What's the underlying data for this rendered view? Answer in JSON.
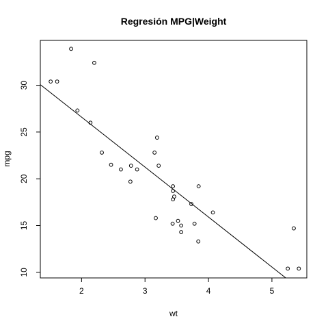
{
  "chart_data": {
    "type": "scatter",
    "title": "Regresión MPG|Weight",
    "xlabel": "wt",
    "ylabel": "mpg",
    "xlim": [
      1.35,
      5.55
    ],
    "ylim": [
      9.4,
      34.8
    ],
    "x_ticks": [
      2,
      3,
      4,
      5
    ],
    "y_ticks": [
      10,
      15,
      20,
      25,
      30
    ],
    "grid": false,
    "legend": "none",
    "point_style": "open-circle",
    "colors": {
      "points": "#000000",
      "line": "#000000",
      "box": "#000000",
      "background": "#ffffff"
    },
    "series": [
      {
        "x": [
          2.62,
          2.875,
          2.32,
          3.215,
          3.44,
          3.46,
          3.57,
          3.19,
          3.15,
          3.44,
          3.44,
          4.07,
          3.73,
          3.78,
          5.25,
          5.424,
          5.345,
          2.2,
          1.615,
          1.835,
          2.465,
          3.52,
          3.435,
          3.84,
          3.845,
          1.935,
          2.14,
          1.513,
          3.17,
          2.77,
          3.57,
          2.78
        ],
        "y": [
          21.0,
          21.0,
          22.8,
          21.4,
          18.7,
          18.1,
          14.3,
          24.4,
          22.8,
          19.2,
          17.8,
          16.4,
          17.3,
          15.2,
          10.4,
          10.4,
          14.7,
          32.4,
          30.4,
          33.9,
          21.5,
          15.5,
          15.2,
          13.3,
          19.2,
          27.3,
          26.0,
          30.4,
          15.8,
          19.7,
          15.0,
          21.4
        ]
      }
    ],
    "regression_line": {
      "intercept": 37.285,
      "slope": -5.344
    }
  }
}
